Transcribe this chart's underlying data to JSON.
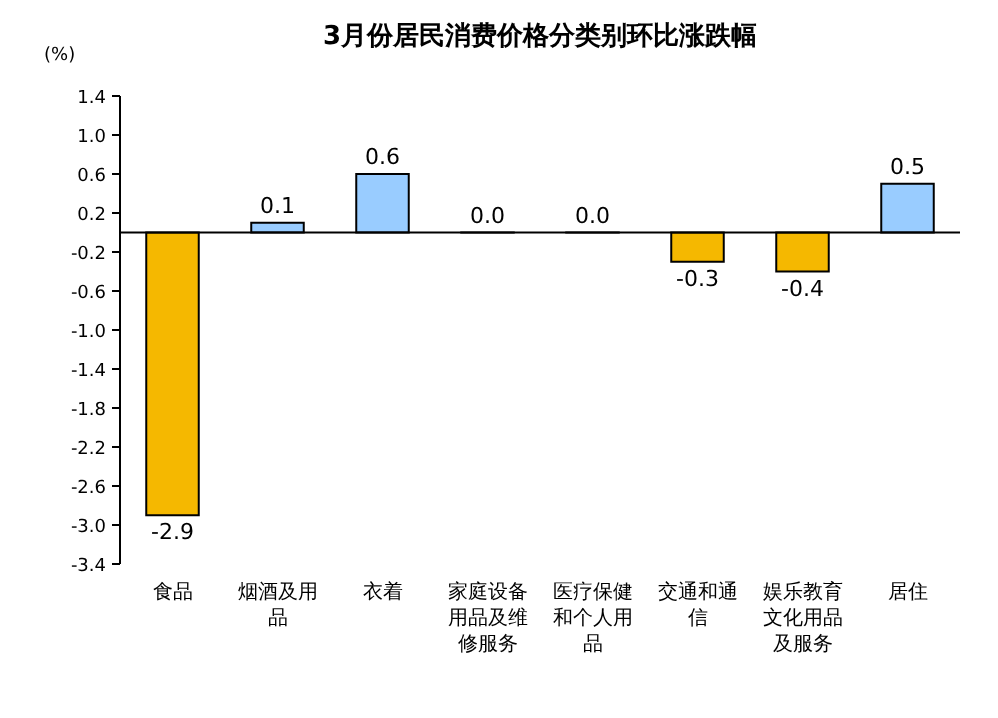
{
  "chart_data": {
    "type": "bar",
    "title": "3月份居民消费价格分类别环比涨跌幅",
    "ylabel": "(%)",
    "categories": [
      "食品",
      "烟酒及用品",
      "衣着",
      "家庭设备用品及维修服务",
      "医疗保健和个人用品",
      "交通和通信",
      "娱乐教育文化用品及服务",
      "居住"
    ],
    "values": [
      -2.9,
      0.1,
      0.6,
      0.0,
      0.0,
      -0.3,
      -0.4,
      0.5
    ],
    "colors": [
      "#f5b800",
      "#99ccff",
      "#99ccff",
      "#99ccff",
      "#99ccff",
      "#f5b800",
      "#f5b800",
      "#99ccff"
    ],
    "value_labels": [
      "-2.9",
      "0.1",
      "0.6",
      "0.0",
      "0.0",
      "-0.3",
      "-0.4",
      "0.5"
    ],
    "ylim": [
      -3.4,
      1.4
    ],
    "yticks": [
      {
        "value": 1.4,
        "label": "1.4"
      },
      {
        "value": 1.0,
        "label": "1.0"
      },
      {
        "value": 0.6,
        "label": "0.6"
      },
      {
        "value": 0.2,
        "label": "0.2"
      },
      {
        "value": -0.2,
        "label": "-0.2"
      },
      {
        "value": -0.6,
        "label": "-0.6"
      },
      {
        "value": -1.0,
        "label": "-1.0"
      },
      {
        "value": -1.4,
        "label": "-1.4"
      },
      {
        "value": -1.8,
        "label": "-1.8"
      },
      {
        "value": -2.2,
        "label": "-2.2"
      },
      {
        "value": -2.6,
        "label": "-2.6"
      },
      {
        "value": -3.0,
        "label": "-3.0"
      },
      {
        "value": -3.4,
        "label": "-3.4"
      }
    ],
    "grid": false
  }
}
